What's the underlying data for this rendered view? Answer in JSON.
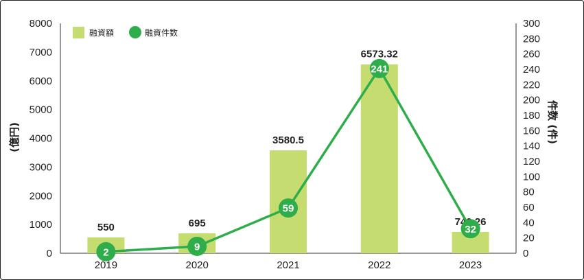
{
  "chart_data": {
    "type": "bar",
    "categories": [
      "2019",
      "2020",
      "2021",
      "2022",
      "2023"
    ],
    "series": [
      {
        "name": "融資額",
        "type": "bar",
        "axis": "left",
        "color": "#c5dc71",
        "values": [
          550,
          695,
          3580.5,
          6573.32,
          740.26
        ],
        "labels": [
          "550",
          "695",
          "3580.5",
          "6573.32",
          "740.26"
        ]
      },
      {
        "name": "融資件数",
        "type": "line",
        "axis": "right",
        "color": "#2ead4a",
        "values": [
          2,
          9,
          59,
          241,
          32
        ],
        "labels": [
          "2",
          "9",
          "59",
          "241",
          "32"
        ]
      }
    ],
    "y_left": {
      "label": "(億円)",
      "ylim": [
        0,
        8000
      ],
      "ticks": [
        "0",
        "1000",
        "2000",
        "3000",
        "4000",
        "5000",
        "6000",
        "7000",
        "8000"
      ]
    },
    "y_right": {
      "label": "件数 (件)",
      "ylim": [
        0,
        300
      ],
      "ticks": [
        "0",
        "20",
        "40",
        "60",
        "80",
        "100",
        "120",
        "140",
        "160",
        "180",
        "200",
        "220",
        "240",
        "260",
        "280",
        "300"
      ]
    },
    "grid": false,
    "legend": "top-left"
  }
}
